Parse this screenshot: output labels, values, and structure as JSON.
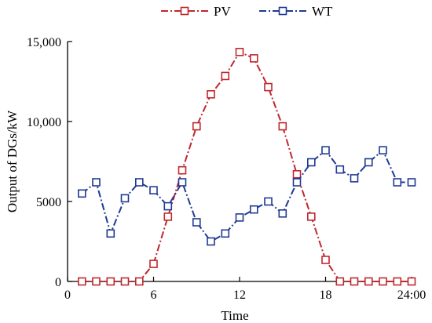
{
  "chart_data": {
    "type": "line",
    "xlabel": "Time",
    "ylabel": "Output of DGs/kW",
    "xlim": [
      0,
      24
    ],
    "ylim": [
      0,
      15000
    ],
    "x_ticks": [
      0,
      6,
      12,
      18,
      24
    ],
    "x_tick_labels": [
      "0",
      "6",
      "12",
      "18",
      "24:00"
    ],
    "y_ticks": [
      0,
      5000,
      10000,
      15000
    ],
    "y_tick_labels": [
      "0",
      "5000",
      "10,000",
      "15,000"
    ],
    "legend_position": "top-center",
    "grid": false,
    "series": [
      {
        "name": "PV",
        "color": "#c0282d",
        "line_style": "dash-dot",
        "marker": "square",
        "x": [
          1,
          2,
          3,
          4,
          5,
          6,
          7,
          8,
          9,
          10,
          11,
          12,
          13,
          14,
          15,
          16,
          17,
          18,
          19,
          20,
          21,
          22,
          23,
          24
        ],
        "values": [
          0,
          0,
          0,
          0,
          0,
          1100,
          4050,
          6950,
          9700,
          11700,
          12850,
          14350,
          13950,
          12150,
          9700,
          6700,
          4050,
          1350,
          0,
          0,
          0,
          0,
          0,
          0
        ]
      },
      {
        "name": "WT",
        "color": "#1f3a93",
        "line_style": "dash-dot",
        "marker": "square",
        "x": [
          1,
          2,
          3,
          4,
          5,
          6,
          7,
          8,
          9,
          10,
          11,
          12,
          13,
          14,
          15,
          16,
          17,
          18,
          19,
          20,
          21,
          22,
          23,
          24
        ],
        "values": [
          5500,
          6200,
          3000,
          5200,
          6200,
          5700,
          4700,
          6200,
          3700,
          2500,
          3000,
          4000,
          4500,
          5000,
          4250,
          6200,
          7450,
          8200,
          7000,
          6450,
          7450,
          8200,
          6200,
          6200
        ]
      }
    ]
  }
}
